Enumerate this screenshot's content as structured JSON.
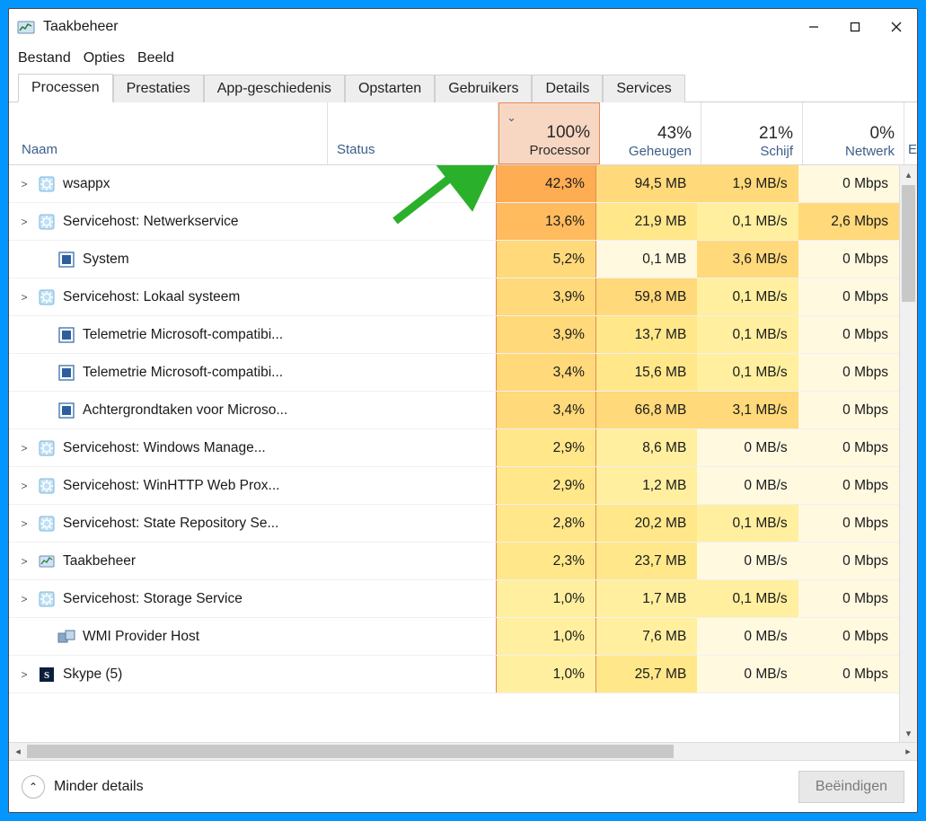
{
  "window": {
    "title": "Taakbeheer"
  },
  "menu": {
    "items": [
      "Bestand",
      "Opties",
      "Beeld"
    ]
  },
  "tabs": {
    "items": [
      "Processen",
      "Prestaties",
      "App-geschiedenis",
      "Opstarten",
      "Gebruikers",
      "Details",
      "Services"
    ],
    "active_index": 0
  },
  "header": {
    "name": "Naam",
    "status": "Status",
    "extra": "Er",
    "cols": [
      {
        "value": "100%",
        "label": "Processor",
        "sorted": true
      },
      {
        "value": "43%",
        "label": "Geheugen",
        "sorted": false
      },
      {
        "value": "21%",
        "label": "Schijf",
        "sorted": false
      },
      {
        "value": "0%",
        "label": "Netwerk",
        "sorted": false
      }
    ]
  },
  "rows": [
    {
      "expand": true,
      "icon": "gear",
      "name": "wsappx",
      "cpu": "42,3%",
      "cpu_heat": 8,
      "mem": "94,5 MB",
      "mem_heat": 5,
      "disk": "1,9 MB/s",
      "disk_heat": 5,
      "net": "0 Mbps",
      "net_heat": 1
    },
    {
      "expand": true,
      "icon": "gear",
      "name": "Servicehost: Netwerkservice",
      "cpu": "13,6%",
      "cpu_heat": 7,
      "mem": "21,9 MB",
      "mem_heat": 4,
      "disk": "0,1 MB/s",
      "disk_heat": 3,
      "net": "2,6 Mbps",
      "net_heat": 5
    },
    {
      "expand": false,
      "icon": "proc",
      "name": "System",
      "cpu": "5,2%",
      "cpu_heat": 5,
      "mem": "0,1 MB",
      "mem_heat": 1,
      "disk": "3,6 MB/s",
      "disk_heat": 5,
      "net": "0 Mbps",
      "net_heat": 1
    },
    {
      "expand": true,
      "icon": "gear",
      "name": "Servicehost: Lokaal systeem",
      "cpu": "3,9%",
      "cpu_heat": 5,
      "mem": "59,8 MB",
      "mem_heat": 5,
      "disk": "0,1 MB/s",
      "disk_heat": 3,
      "net": "0 Mbps",
      "net_heat": 1
    },
    {
      "expand": false,
      "icon": "proc",
      "name": "Telemetrie Microsoft-compatibi...",
      "cpu": "3,9%",
      "cpu_heat": 5,
      "mem": "13,7 MB",
      "mem_heat": 4,
      "disk": "0,1 MB/s",
      "disk_heat": 3,
      "net": "0 Mbps",
      "net_heat": 1
    },
    {
      "expand": false,
      "icon": "proc",
      "name": "Telemetrie Microsoft-compatibi...",
      "cpu": "3,4%",
      "cpu_heat": 5,
      "mem": "15,6 MB",
      "mem_heat": 4,
      "disk": "0,1 MB/s",
      "disk_heat": 3,
      "net": "0 Mbps",
      "net_heat": 1
    },
    {
      "expand": false,
      "icon": "proc",
      "name": "Achtergrondtaken voor Microso...",
      "cpu": "3,4%",
      "cpu_heat": 5,
      "mem": "66,8 MB",
      "mem_heat": 5,
      "disk": "3,1 MB/s",
      "disk_heat": 5,
      "net": "0 Mbps",
      "net_heat": 1
    },
    {
      "expand": true,
      "icon": "gear",
      "name": "Servicehost: Windows Manage...",
      "cpu": "2,9%",
      "cpu_heat": 4,
      "mem": "8,6 MB",
      "mem_heat": 3,
      "disk": "0 MB/s",
      "disk_heat": 1,
      "net": "0 Mbps",
      "net_heat": 1
    },
    {
      "expand": true,
      "icon": "gear",
      "name": "Servicehost: WinHTTP Web Prox...",
      "cpu": "2,9%",
      "cpu_heat": 4,
      "mem": "1,2 MB",
      "mem_heat": 3,
      "disk": "0 MB/s",
      "disk_heat": 1,
      "net": "0 Mbps",
      "net_heat": 1
    },
    {
      "expand": true,
      "icon": "gear",
      "name": "Servicehost: State Repository Se...",
      "cpu": "2,8%",
      "cpu_heat": 4,
      "mem": "20,2 MB",
      "mem_heat": 4,
      "disk": "0,1 MB/s",
      "disk_heat": 3,
      "net": "0 Mbps",
      "net_heat": 1
    },
    {
      "expand": true,
      "icon": "tm",
      "name": "Taakbeheer",
      "cpu": "2,3%",
      "cpu_heat": 4,
      "mem": "23,7 MB",
      "mem_heat": 4,
      "disk": "0 MB/s",
      "disk_heat": 1,
      "net": "0 Mbps",
      "net_heat": 1
    },
    {
      "expand": true,
      "icon": "gear",
      "name": "Servicehost: Storage Service",
      "cpu": "1,0%",
      "cpu_heat": 3,
      "mem": "1,7 MB",
      "mem_heat": 3,
      "disk": "0,1 MB/s",
      "disk_heat": 3,
      "net": "0 Mbps",
      "net_heat": 1
    },
    {
      "expand": false,
      "icon": "wmi",
      "name": "WMI Provider Host",
      "cpu": "1,0%",
      "cpu_heat": 3,
      "mem": "7,6 MB",
      "mem_heat": 3,
      "disk": "0 MB/s",
      "disk_heat": 1,
      "net": "0 Mbps",
      "net_heat": 1
    },
    {
      "expand": true,
      "icon": "skype",
      "name": "Skype (5)",
      "cpu": "1,0%",
      "cpu_heat": 3,
      "mem": "25,7 MB",
      "mem_heat": 4,
      "disk": "0 MB/s",
      "disk_heat": 1,
      "net": "0 Mbps",
      "net_heat": 1
    }
  ],
  "footer": {
    "fewer": "Minder details",
    "end": "Beëindigen"
  },
  "colors": {
    "accent_border": "#e48b5a",
    "arrow": "#2bb02b"
  }
}
